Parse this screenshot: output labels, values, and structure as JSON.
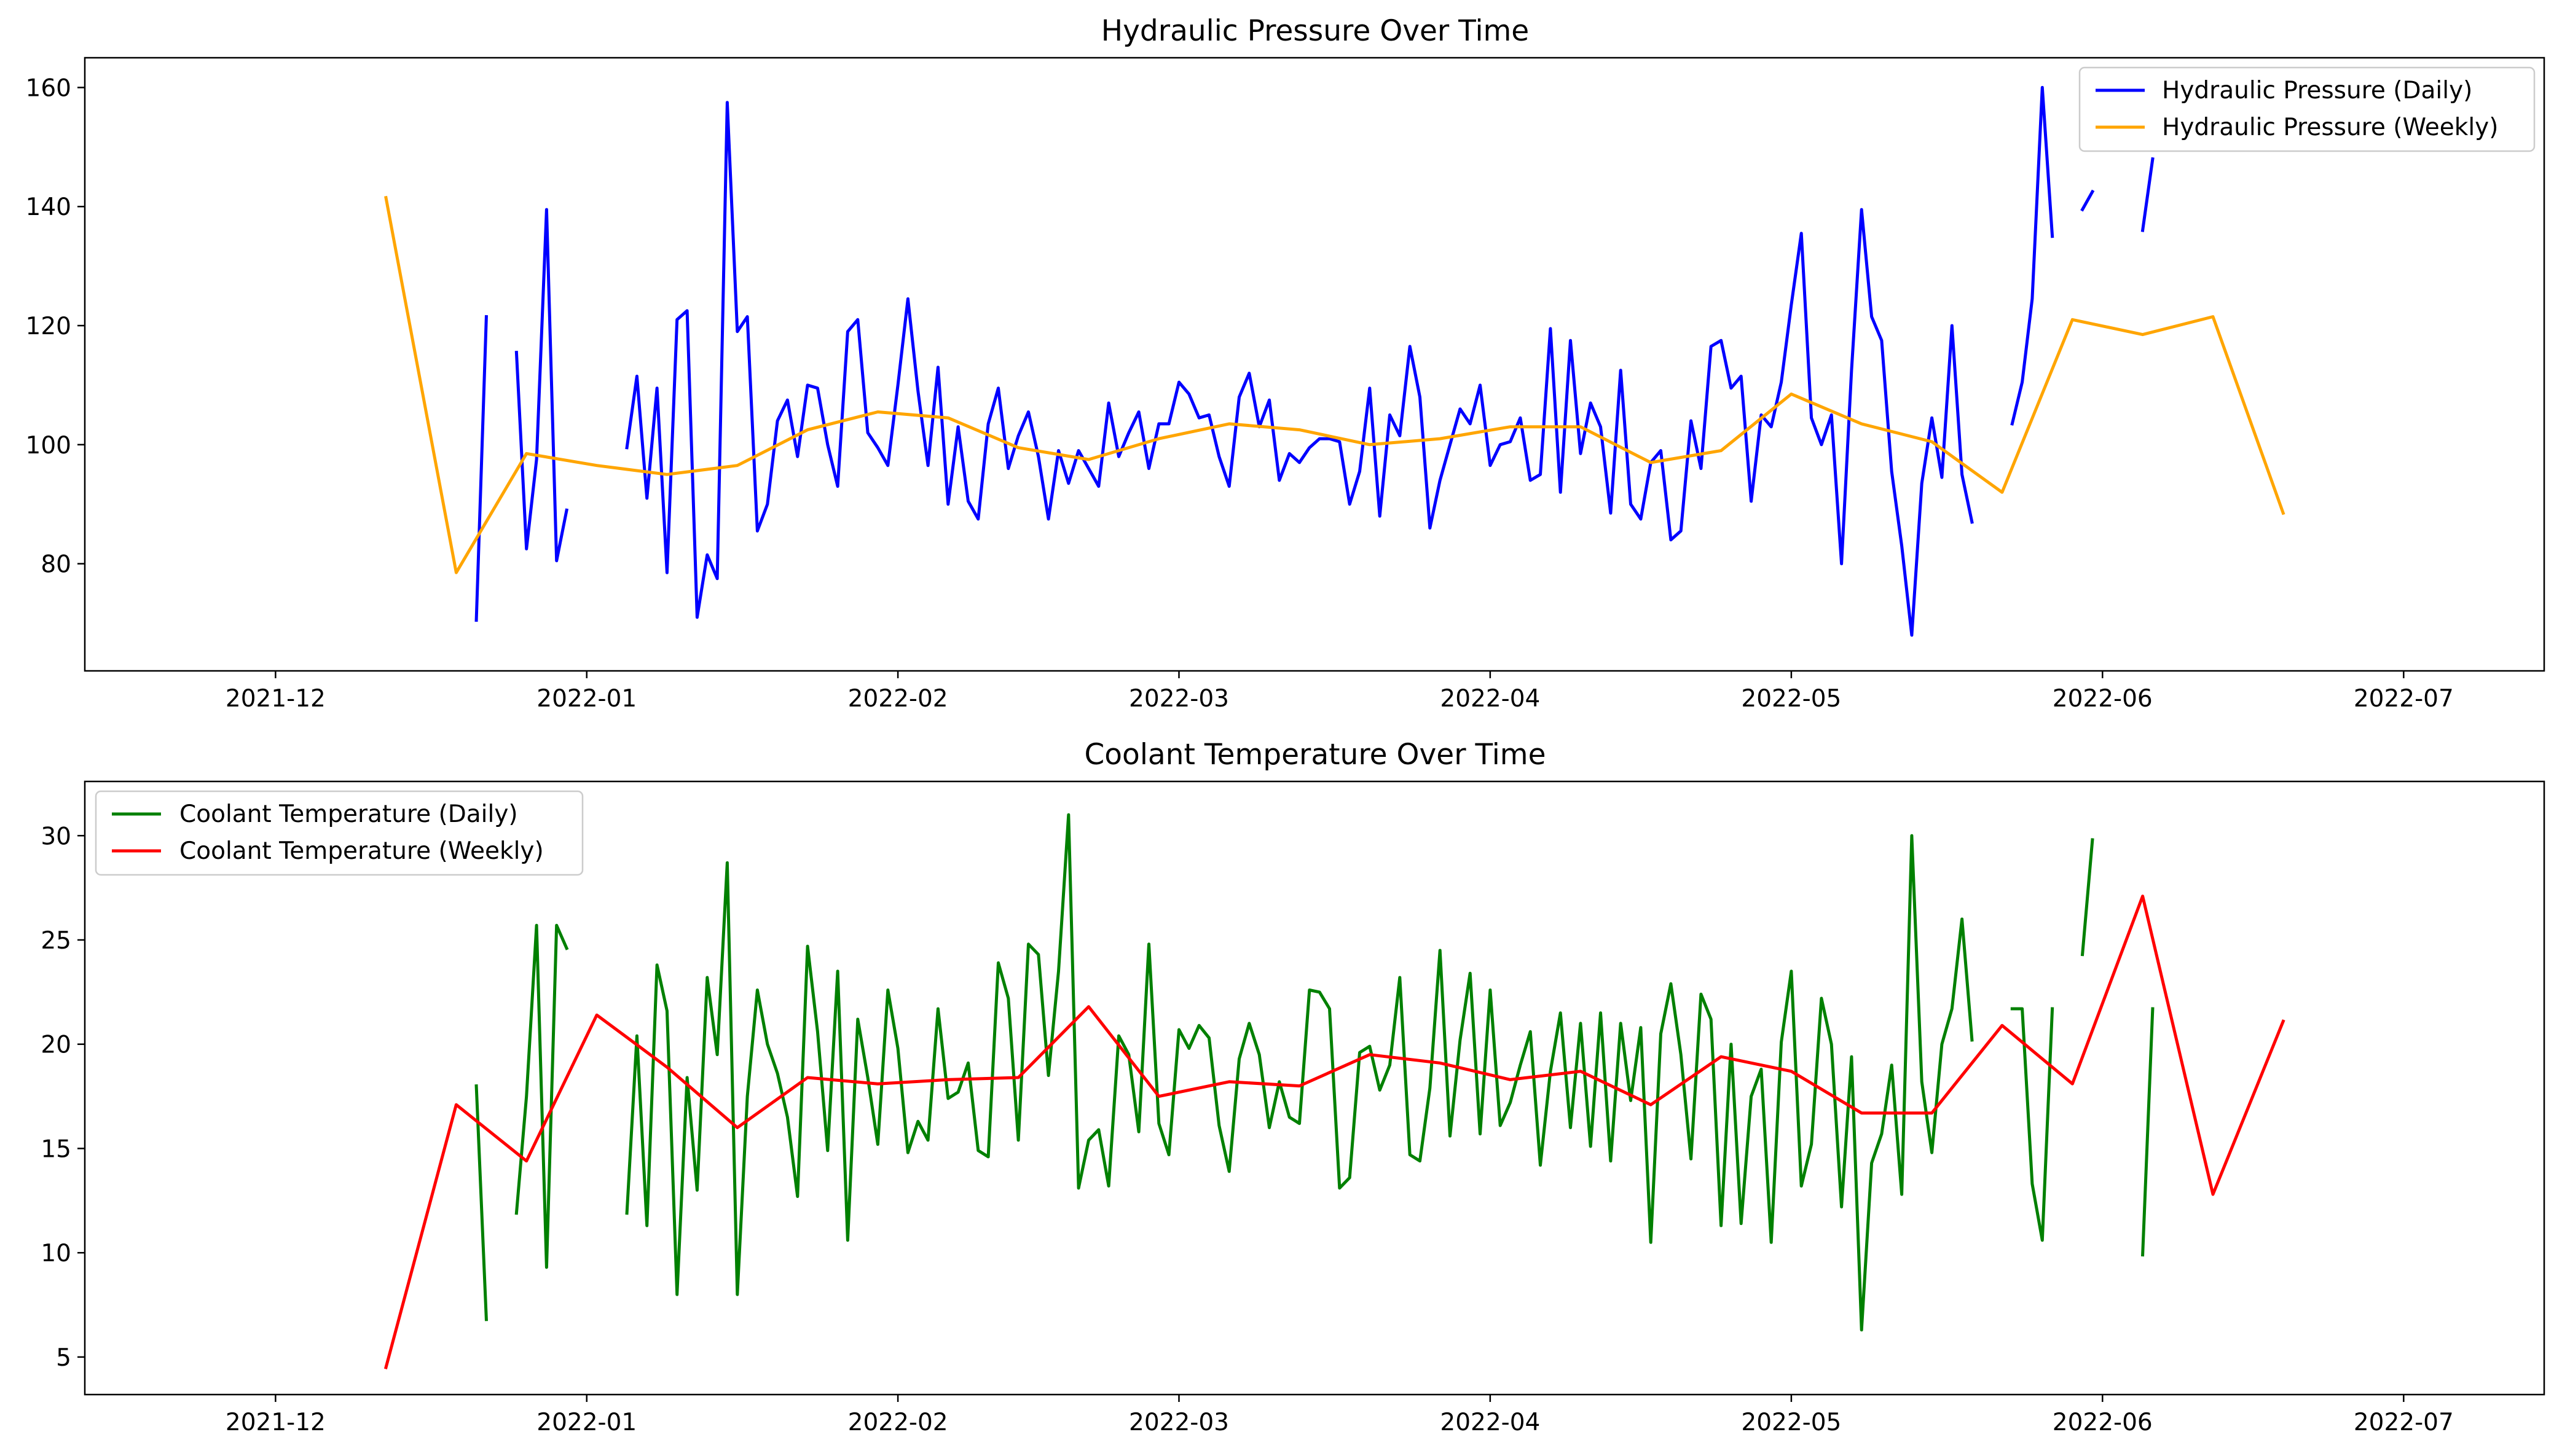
{
  "chart_data": [
    {
      "type": "line",
      "title": "Hydraulic Pressure Over Time",
      "xlabel": "",
      "ylabel": "",
      "xlim": [
        "2021-11-12",
        "2022-07-15"
      ],
      "ylim": [
        62,
        165
      ],
      "grid": false,
      "legend_position": "top-right",
      "x_tick_labels": [
        "2021-12",
        "2022-01",
        "2022-02",
        "2022-03",
        "2022-04",
        "2022-05",
        "2022-06",
        "2022-07"
      ],
      "y_tick_labels": [
        "80",
        "100",
        "120",
        "140",
        "160"
      ],
      "series": [
        {
          "name": "Hydraulic Pressure (Daily)",
          "color": "#0000ff",
          "segments": [
            {
              "start": "2021-12-21",
              "values": [
                70.5,
                121.5
              ]
            },
            {
              "start": "2021-12-25",
              "values": [
                115.5,
                82.5,
                97.5,
                139.5,
                80.5,
                89
              ]
            },
            {
              "start": "2022-01-05",
              "values": [
                99.5,
                111.5,
                91,
                109.5,
                78.5,
                121,
                122.5,
                71,
                81.5,
                77.5,
                157.5,
                119,
                121.5,
                85.5,
                90,
                104,
                107.5,
                98,
                110,
                109.5,
                100,
                93,
                119,
                121,
                102,
                99.5,
                96.5,
                110,
                124.5,
                109,
                96.5,
                113,
                90,
                103,
                90.5,
                87.5,
                103.5,
                109.5,
                96,
                101.5,
                105.5,
                98,
                87.5,
                99,
                93.5,
                99,
                96,
                93,
                107,
                98,
                102,
                105.5,
                96,
                103.5,
                103.5,
                110.5,
                108.5,
                104.5,
                105,
                98,
                93,
                108,
                112,
                103,
                107.5,
                94,
                98.5,
                97,
                99.5,
                101,
                101,
                100.5,
                90,
                95.5,
                109.5,
                88,
                105,
                101.5,
                116.5,
                108,
                86,
                94,
                100,
                106,
                103.5,
                110,
                96.5,
                100,
                100.5,
                104.5,
                94,
                95,
                119.5,
                92,
                117.5,
                98.5,
                107,
                103,
                88.5,
                112.5,
                90,
                87.5,
                97,
                99,
                84,
                85.5,
                104,
                96,
                116.5,
                117.5,
                109.5,
                111.5,
                90.5,
                105,
                103,
                110.5,
                123.5,
                135.5,
                104.5,
                100,
                105,
                80,
                112.5,
                139.5,
                121.5,
                117.5,
                95.5,
                83,
                68,
                93.5,
                104.5,
                94.5,
                120,
                95,
                87
              ]
            },
            {
              "start": "2022-05-23",
              "values": [
                103.5,
                110.5,
                124.5,
                160,
                135
              ]
            },
            {
              "start": "2022-05-30",
              "values": [
                139.5,
                142.5
              ]
            },
            {
              "start": "2022-06-05",
              "values": [
                136,
                148
              ]
            }
          ]
        },
        {
          "name": "Hydraulic Pressure (Weekly)",
          "color": "#ffa500",
          "x": [
            "2021-12-12",
            "2021-12-19",
            "2021-12-26",
            "2022-01-02",
            "2022-01-09",
            "2022-01-16",
            "2022-01-23",
            "2022-01-30",
            "2022-02-06",
            "2022-02-13",
            "2022-02-20",
            "2022-02-27",
            "2022-03-06",
            "2022-03-13",
            "2022-03-20",
            "2022-03-27",
            "2022-04-03",
            "2022-04-10",
            "2022-04-17",
            "2022-04-24",
            "2022-05-01",
            "2022-05-08",
            "2022-05-15",
            "2022-05-22",
            "2022-05-29",
            "2022-06-05",
            "2022-06-12",
            "2022-06-19"
          ],
          "values": [
            141.5,
            78.5,
            98.5,
            96.5,
            95,
            96.5,
            102.5,
            105.5,
            104.5,
            99.5,
            97.5,
            101,
            103.5,
            102.5,
            100,
            101,
            103,
            103,
            97,
            99,
            108.5,
            103.5,
            100.5,
            92,
            121,
            118.5,
            121.5,
            88.5
          ]
        }
      ]
    },
    {
      "type": "line",
      "title": "Coolant Temperature Over Time",
      "xlabel": "",
      "ylabel": "",
      "xlim": [
        "2021-11-12",
        "2022-07-15"
      ],
      "ylim": [
        3.2,
        32.6
      ],
      "grid": false,
      "legend_position": "top-left",
      "x_tick_labels": [
        "2021-12",
        "2022-01",
        "2022-02",
        "2022-03",
        "2022-04",
        "2022-05",
        "2022-06",
        "2022-07"
      ],
      "y_tick_labels": [
        "5",
        "10",
        "15",
        "20",
        "25",
        "30"
      ],
      "series": [
        {
          "name": "Coolant Temperature (Daily)",
          "color": "#008000",
          "segments": [
            {
              "start": "2021-12-21",
              "values": [
                18,
                6.8
              ]
            },
            {
              "start": "2021-12-25",
              "values": [
                11.9,
                17.5,
                25.7,
                9.3,
                25.7,
                24.6
              ]
            },
            {
              "start": "2022-01-05",
              "values": [
                11.9,
                20.4,
                11.3,
                23.8,
                21.6,
                8,
                18.4,
                13,
                23.2,
                19.5,
                28.7,
                8,
                17.5,
                22.6,
                20,
                18.6,
                16.5,
                12.7,
                24.7,
                20.6,
                14.9,
                23.5,
                10.6,
                21.2,
                18.4,
                15.2,
                22.6,
                19.8,
                14.8,
                16.3,
                15.4,
                21.7,
                17.4,
                17.7,
                19.1,
                14.9,
                14.6,
                23.9,
                22.2,
                15.4,
                24.8,
                24.3,
                18.5,
                23.5,
                31,
                13.1,
                15.4,
                15.9,
                13.2,
                20.4,
                19.5,
                15.8,
                24.8,
                16.2,
                14.7,
                20.7,
                19.8,
                20.9,
                20.3,
                16.1,
                13.9,
                19.3,
                21,
                19.5,
                16,
                18.2,
                16.5,
                16.2,
                22.6,
                22.5,
                21.7,
                13.1,
                13.6,
                19.6,
                19.9,
                17.8,
                19,
                23.2,
                14.7,
                14.4,
                17.9,
                24.5,
                15.6,
                20.2,
                23.4,
                15.7,
                22.6,
                16.1,
                17.2,
                19,
                20.6,
                14.2,
                18.7,
                21.5,
                16,
                21,
                15.1,
                21.5,
                14.4,
                21,
                17.3,
                20.8,
                10.5,
                20.5,
                22.9,
                19.5,
                14.5,
                22.4,
                21.2,
                11.3,
                20,
                11.4,
                17.5,
                18.8,
                10.5,
                20.1,
                23.5,
                13.2,
                15.2,
                22.2,
                20,
                12.2,
                19.4,
                6.3,
                14.3,
                15.7,
                19,
                12.8,
                30,
                18.2,
                14.8,
                20,
                21.7,
                26,
                20.2
              ]
            },
            {
              "start": "2022-05-23",
              "values": [
                21.7,
                21.7,
                13.3,
                10.6,
                21.7
              ]
            },
            {
              "start": "2022-05-30",
              "values": [
                24.3,
                29.8
              ]
            },
            {
              "start": "2022-06-05",
              "values": [
                9.9,
                21.7
              ]
            }
          ]
        },
        {
          "name": "Coolant Temperature (Weekly)",
          "color": "#ff0000",
          "x": [
            "2021-12-12",
            "2021-12-19",
            "2021-12-26",
            "2022-01-02",
            "2022-01-09",
            "2022-01-16",
            "2022-01-23",
            "2022-01-30",
            "2022-02-06",
            "2022-02-13",
            "2022-02-20",
            "2022-02-27",
            "2022-03-06",
            "2022-03-13",
            "2022-03-20",
            "2022-03-27",
            "2022-04-03",
            "2022-04-10",
            "2022-04-17",
            "2022-04-24",
            "2022-05-01",
            "2022-05-08",
            "2022-05-15",
            "2022-05-22",
            "2022-05-29",
            "2022-06-05",
            "2022-06-12",
            "2022-06-19"
          ],
          "values": [
            4.5,
            17.1,
            14.4,
            21.4,
            18.9,
            16,
            18.4,
            18.1,
            18.3,
            18.4,
            21.8,
            17.5,
            18.2,
            18,
            19.5,
            19.1,
            18.3,
            18.7,
            17.1,
            19.4,
            18.7,
            16.7,
            16.7,
            20.9,
            18.1,
            27.1,
            12.8,
            21.1
          ]
        }
      ]
    }
  ]
}
